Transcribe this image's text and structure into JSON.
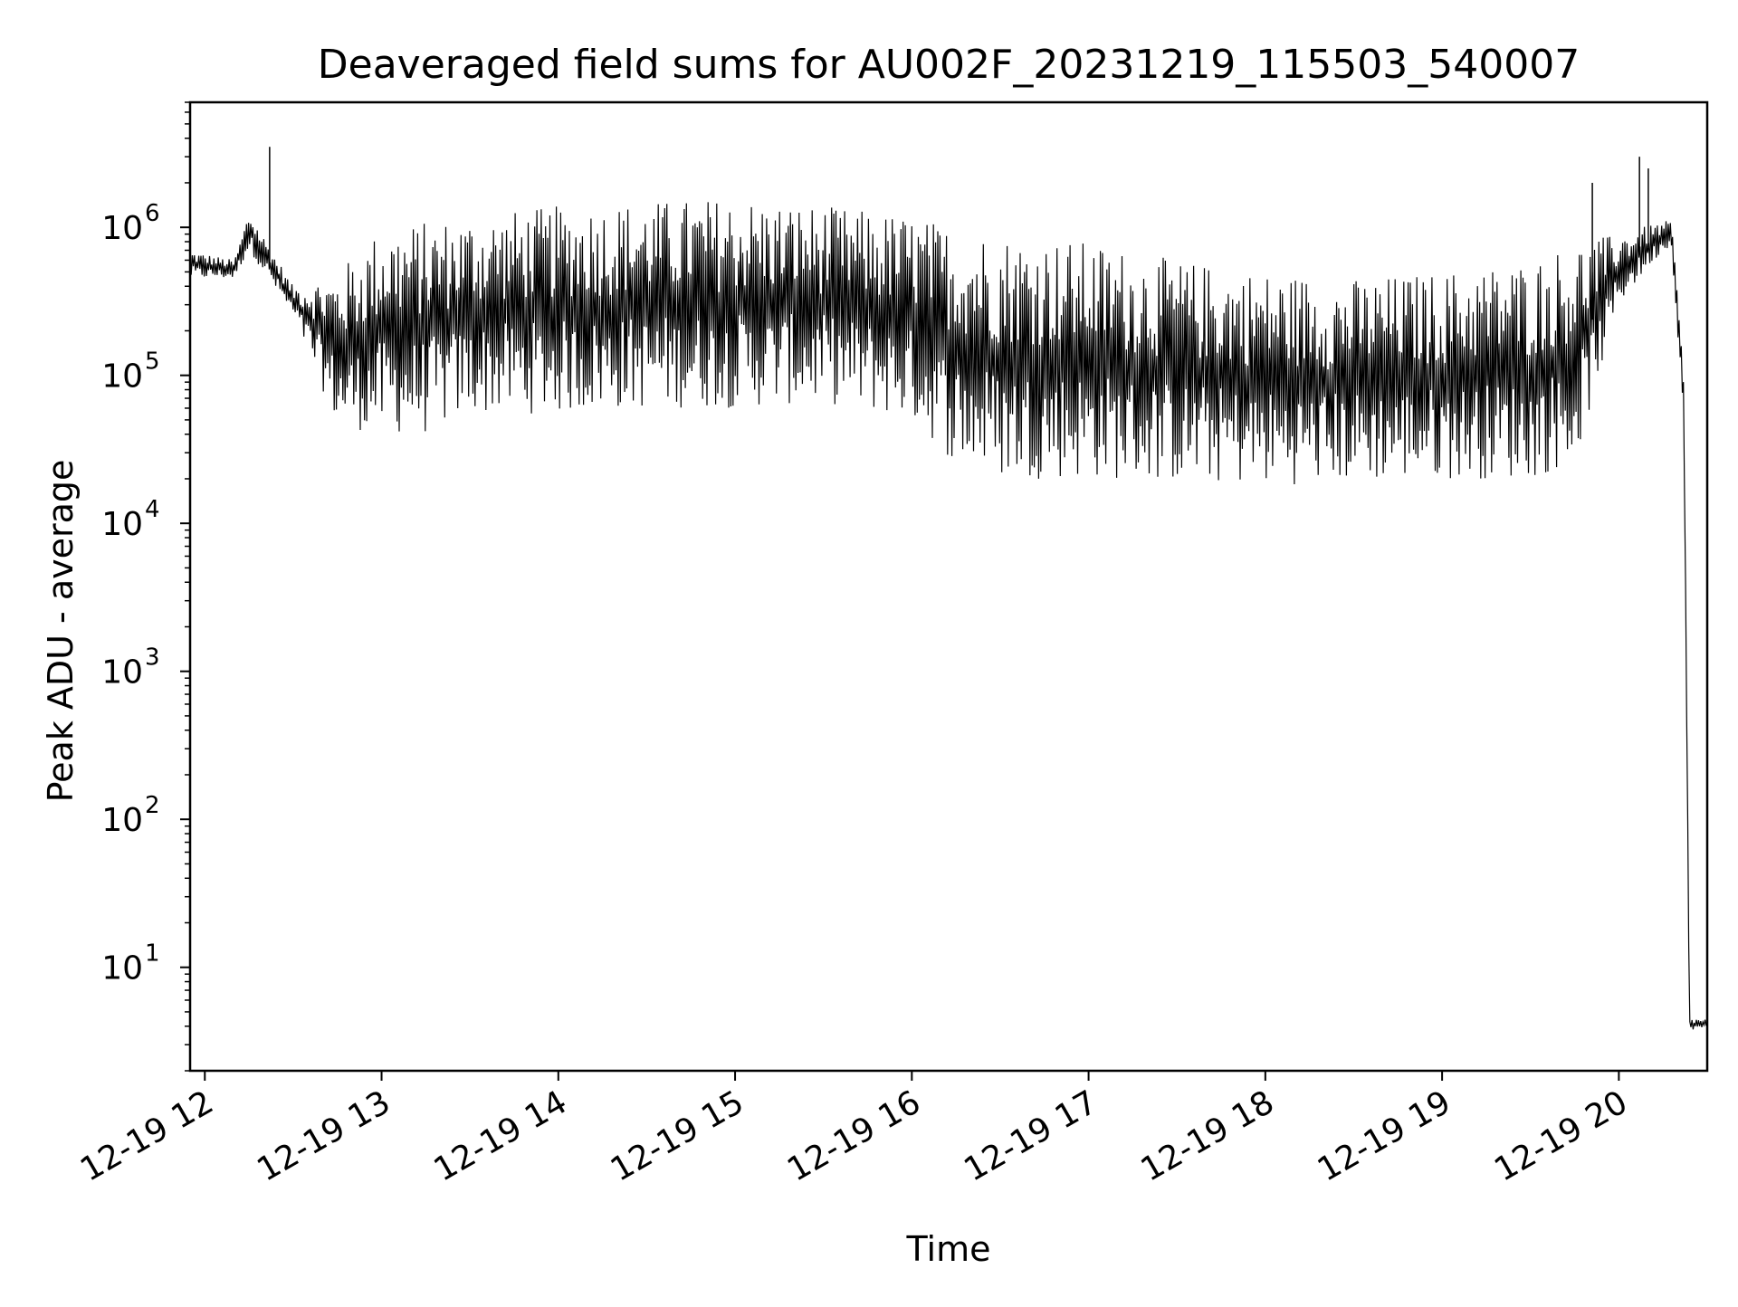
{
  "chart_data": {
    "type": "line",
    "title": "Deaveraged field sums for AU002F_20231219_115503_540007",
    "xlabel": "Time",
    "ylabel": "Peak ADU - average",
    "xscale": "time",
    "yscale": "log",
    "xlim": [
      "2023-12-19 11:55",
      "2023-12-19 20:30"
    ],
    "ylim": [
      2,
      7000000
    ],
    "grid": true,
    "legend": "none",
    "line_color": "#000000",
    "x_ticks": [
      "2023-12-19 12:00",
      "2023-12-19 13:00",
      "2023-12-19 14:00",
      "2023-12-19 15:00",
      "2023-12-19 16:00",
      "2023-12-19 17:00",
      "2023-12-19 18:00",
      "2023-12-19 19:00",
      "2023-12-19 20:00"
    ],
    "x_tick_labels": [
      "12-19 12",
      "12-19 13",
      "12-19 14",
      "12-19 15",
      "12-19 16",
      "12-19 17",
      "12-19 18",
      "12-19 19",
      "12-19 20"
    ],
    "y_ticks": [
      10,
      100,
      1000,
      10000,
      100000,
      1000000
    ],
    "y_tick_labels": [
      {
        "base": "10",
        "exp": "1"
      },
      {
        "base": "10",
        "exp": "2"
      },
      {
        "base": "10",
        "exp": "3"
      },
      {
        "base": "10",
        "exp": "4"
      },
      {
        "base": "10",
        "exp": "5"
      },
      {
        "base": "10",
        "exp": "6"
      }
    ],
    "series": [
      {
        "envelope_x": [
          "2023-12-19 11:55",
          "2023-12-19 12:10",
          "2023-12-19 12:15",
          "2023-12-19 12:30",
          "2023-12-19 12:45",
          "2023-12-19 13:00",
          "2023-12-19 13:15",
          "2023-12-19 13:30",
          "2023-12-19 14:00",
          "2023-12-19 14:30",
          "2023-12-19 15:00",
          "2023-12-19 15:30",
          "2023-12-19 16:00",
          "2023-12-19 16:15",
          "2023-12-19 16:30",
          "2023-12-19 17:00",
          "2023-12-19 17:30",
          "2023-12-19 18:00",
          "2023-12-19 18:30",
          "2023-12-19 19:00",
          "2023-12-19 19:30",
          "2023-12-19 19:45",
          "2023-12-19 20:00",
          "2023-12-19 20:15",
          "2023-12-19 20:18",
          "2023-12-19 20:22",
          "2023-12-19 20:24",
          "2023-12-19 20:30"
        ],
        "envelope_high": [
          700000,
          600000,
          1300000,
          400000,
          500000,
          1000000,
          1100000,
          1200000,
          1400000,
          1500000,
          1600000,
          1400000,
          1200000,
          1000000,
          900000,
          800000,
          600000,
          500000,
          450000,
          500000,
          600000,
          800000,
          900000,
          1100000,
          1100000,
          100000,
          4.5,
          4.5
        ],
        "envelope_low": [
          450000,
          450000,
          700000,
          250000,
          45000,
          40000,
          40000,
          55000,
          55000,
          60000,
          60000,
          65000,
          50000,
          25000,
          20000,
          20000,
          19000,
          18000,
          19000,
          20000,
          20000,
          25000,
          300000,
          700000,
          700000,
          50000,
          3.8,
          3.8
        ],
        "spikes": [
          {
            "x": "2023-12-19 12:22",
            "y": 3500000
          },
          {
            "x": "2023-12-19 20:07",
            "y": 3000000
          },
          {
            "x": "2023-12-19 20:10",
            "y": 2500000
          },
          {
            "x": "2023-12-19 19:51",
            "y": 2000000
          }
        ],
        "values": []
      }
    ]
  }
}
